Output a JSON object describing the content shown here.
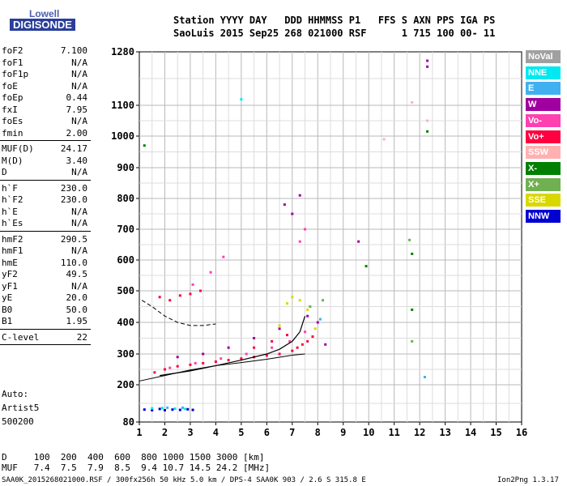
{
  "logo": {
    "line1": "Lowell",
    "line2": "DIGISONDE"
  },
  "header": {
    "line1": "Station YYYY DAY   DDD HHMMSS P1   FFS S AXN PPS IGA PS",
    "line2": "SaoLuis 2015 Sep25 268 021000 RSF      1 715 100 00- 11"
  },
  "params_group1": [
    {
      "name": "foF2",
      "value": "7.100"
    },
    {
      "name": "foF1",
      "value": "N/A"
    },
    {
      "name": "foF1p",
      "value": "N/A"
    },
    {
      "name": "foE",
      "value": "N/A"
    },
    {
      "name": "foEp",
      "value": "0.44"
    },
    {
      "name": "fxI",
      "value": "7.95"
    },
    {
      "name": "foEs",
      "value": "N/A"
    },
    {
      "name": "fmin",
      "value": "2.00"
    }
  ],
  "params_group2": [
    {
      "name": "MUF(D)",
      "value": "24.17"
    },
    {
      "name": "M(D)",
      "value": "3.40"
    },
    {
      "name": "D",
      "value": "N/A"
    }
  ],
  "params_group3": [
    {
      "name": "h`F",
      "value": "230.0"
    },
    {
      "name": "h`F2",
      "value": "230.0"
    },
    {
      "name": "h`E",
      "value": "N/A"
    },
    {
      "name": "h`Es",
      "value": "N/A"
    }
  ],
  "params_group4": [
    {
      "name": "hmF2",
      "value": "290.5"
    },
    {
      "name": "hmF1",
      "value": "N/A"
    },
    {
      "name": "hmE",
      "value": "110.0"
    },
    {
      "name": "yF2",
      "value": "49.5"
    },
    {
      "name": "yF1",
      "value": "N/A"
    },
    {
      "name": "yE",
      "value": "20.0"
    },
    {
      "name": "B0",
      "value": "50.0"
    },
    {
      "name": "B1",
      "value": "1.95"
    }
  ],
  "params_group5": [
    {
      "name": "C-level",
      "value": "22"
    }
  ],
  "autoscale": {
    "line1": "Auto:",
    "line2": "Artist5",
    "line3": "500200"
  },
  "legend": [
    {
      "label": "NoVal",
      "color": "#a0a0a0"
    },
    {
      "label": "NNE",
      "color": "#00e8f0"
    },
    {
      "label": "E",
      "color": "#40b0f0"
    },
    {
      "label": "W",
      "color": "#a000a0"
    },
    {
      "label": "Vo-",
      "color": "#ff40b0"
    },
    {
      "label": "Vo+",
      "color": "#ff0040"
    },
    {
      "label": "SSW",
      "color": "#ffb0b0"
    },
    {
      "label": "X-",
      "color": "#008000"
    },
    {
      "label": "X+",
      "color": "#70b050"
    },
    {
      "label": "SSE",
      "color": "#d8d800"
    },
    {
      "label": "NNW",
      "color": "#0000d0"
    }
  ],
  "muf_table": {
    "d_row": "D     100  200  400  600  800 1000 1500 3000 [km]",
    "muf_row": "MUF   7.4  7.5  7.9  8.5  9.4 10.7 14.5 24.2 [MHz]"
  },
  "footer": {
    "left": "SAA0K_2015268021000.RSF / 300fx256h 50 kHz 5.0 km / DPS-4 SAA0K 903 / 2.6 S 315.8 E",
    "right": "Ion2Png 1.3.17"
  },
  "chart_data": {
    "type": "scatter",
    "xlabel": "",
    "ylabel": "",
    "xlim": [
      1,
      16
    ],
    "ylim": [
      80,
      1280
    ],
    "x_ticks": [
      1,
      2,
      3,
      4,
      5,
      6,
      7,
      8,
      9,
      10,
      11,
      12,
      13,
      14,
      15,
      16
    ],
    "y_ticks": [
      80,
      200,
      300,
      400,
      500,
      600,
      700,
      800,
      900,
      1000,
      1100,
      1280
    ],
    "grid": true,
    "series": [
      {
        "name": "Vo+",
        "color": "#ff0040",
        "points": [
          [
            1.6,
            240
          ],
          [
            2,
            250
          ],
          [
            2.5,
            260
          ],
          [
            3,
            265
          ],
          [
            3.5,
            270
          ],
          [
            4,
            275
          ],
          [
            4.5,
            280
          ],
          [
            5,
            285
          ],
          [
            5.5,
            290
          ],
          [
            6,
            295
          ],
          [
            6.5,
            300
          ],
          [
            7,
            310
          ],
          [
            7.2,
            320
          ],
          [
            7.4,
            330
          ],
          [
            7.6,
            340
          ],
          [
            7.8,
            355
          ],
          [
            1.8,
            480
          ],
          [
            2.2,
            470
          ],
          [
            2.6,
            485
          ],
          [
            3,
            490
          ],
          [
            3.4,
            500
          ],
          [
            5.5,
            320
          ],
          [
            6.2,
            340
          ],
          [
            6.8,
            360
          ]
        ]
      },
      {
        "name": "Vo-",
        "color": "#ff40b0",
        "points": [
          [
            2.2,
            255
          ],
          [
            3.2,
            270
          ],
          [
            4.2,
            285
          ],
          [
            5.2,
            300
          ],
          [
            6.2,
            320
          ],
          [
            6.9,
            340
          ],
          [
            7.5,
            370
          ],
          [
            3.1,
            520
          ],
          [
            3.8,
            560
          ],
          [
            4.3,
            610
          ],
          [
            7.3,
            660
          ],
          [
            7.5,
            700
          ]
        ]
      },
      {
        "name": "W",
        "color": "#a000a0",
        "points": [
          [
            2.5,
            290
          ],
          [
            3.5,
            300
          ],
          [
            4.5,
            320
          ],
          [
            5.5,
            350
          ],
          [
            6.5,
            380
          ],
          [
            7.6,
            420
          ],
          [
            8,
            400
          ],
          [
            8.3,
            330
          ],
          [
            6.7,
            780
          ],
          [
            7,
            750
          ],
          [
            7.3,
            810
          ],
          [
            12.3,
            1250
          ],
          [
            12.3,
            1230
          ],
          [
            9.6,
            660
          ]
        ]
      },
      {
        "name": "NNW",
        "color": "#0000d0",
        "points": [
          [
            1.2,
            120
          ],
          [
            1.5,
            118
          ],
          [
            1.8,
            122
          ],
          [
            2,
            118
          ],
          [
            2.3,
            120
          ],
          [
            2.6,
            119
          ],
          [
            2.9,
            121
          ],
          [
            3.1,
            119
          ]
        ]
      },
      {
        "name": "NNE",
        "color": "#00e8f0",
        "points": [
          [
            1.5,
            124
          ],
          [
            1.9,
            125
          ],
          [
            2.4,
            123
          ],
          [
            2.8,
            122
          ],
          [
            5,
            1120
          ]
        ]
      },
      {
        "name": "E",
        "color": "#40b0f0",
        "points": [
          [
            2.1,
            126
          ],
          [
            2.7,
            126
          ],
          [
            8.1,
            410
          ],
          [
            12.2,
            225
          ]
        ]
      },
      {
        "name": "SSE",
        "color": "#d8d800",
        "points": [
          [
            6.8,
            460
          ],
          [
            7,
            480
          ],
          [
            7.3,
            470
          ],
          [
            7.6,
            440
          ],
          [
            6.5,
            390
          ],
          [
            7.9,
            380
          ]
        ]
      },
      {
        "name": "X-",
        "color": "#008000",
        "points": [
          [
            11.7,
            440
          ],
          [
            11.7,
            620
          ],
          [
            12.3,
            1015
          ],
          [
            9.9,
            580
          ],
          [
            1.2,
            970
          ]
        ]
      },
      {
        "name": "X+",
        "color": "#70b050",
        "points": [
          [
            8.2,
            470
          ],
          [
            7.7,
            450
          ],
          [
            11.7,
            340
          ],
          [
            11.6,
            665
          ]
        ]
      },
      {
        "name": "SSW",
        "color": "#ffb0b0",
        "points": [
          [
            12.3,
            1050
          ],
          [
            11.7,
            1110
          ],
          [
            10.6,
            990
          ]
        ]
      }
    ],
    "profile_line": {
      "x": [
        1,
        2,
        3,
        4,
        5,
        6,
        7,
        7.5
      ],
      "y": [
        212,
        230,
        248,
        262,
        272,
        283,
        296,
        300
      ]
    },
    "trace_curve": {
      "x": [
        1.8,
        3,
        4,
        5,
        6,
        6.5,
        7,
        7.3,
        7.5
      ],
      "y": [
        230,
        245,
        262,
        280,
        300,
        315,
        340,
        370,
        420
      ]
    },
    "dashed_trace": {
      "x": [
        1.1,
        1.5,
        2,
        2.5,
        3,
        3.5,
        4
      ],
      "y": [
        470,
        450,
        420,
        400,
        390,
        390,
        395
      ]
    }
  }
}
